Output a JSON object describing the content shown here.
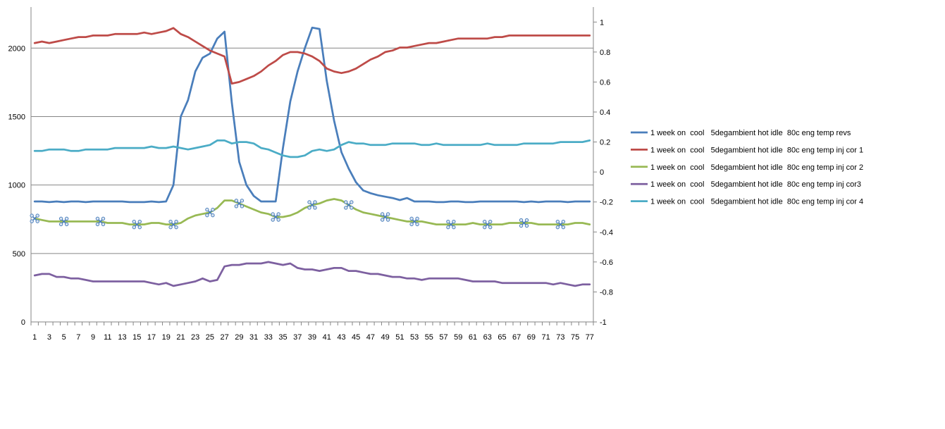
{
  "chart_data": {
    "type": "line",
    "title": "",
    "xlabel": "",
    "ylabel": "",
    "x_tick_labels": [
      "1",
      "3",
      "5",
      "7",
      "9",
      "11",
      "13",
      "15",
      "17",
      "19",
      "21",
      "23",
      "25",
      "27",
      "29",
      "31",
      "33",
      "35",
      "37",
      "39",
      "41",
      "43",
      "45",
      "47",
      "49",
      "51",
      "53",
      "55",
      "57",
      "59",
      "61",
      "63",
      "65",
      "67",
      "69",
      "71",
      "73",
      "75",
      "77"
    ],
    "y_left": {
      "lim": [
        0,
        2300
      ],
      "ticks": [
        0,
        500,
        1000,
        1500,
        2000
      ],
      "tick_labels": [
        "0",
        "500",
        "1000",
        "1500",
        "2000"
      ]
    },
    "y_right": {
      "lim": [
        -1,
        1.1
      ],
      "ticks": [
        -1,
        -0.8,
        -0.6,
        -0.4,
        -0.2,
        0,
        0.2,
        0.4,
        0.6,
        0.8,
        1
      ],
      "tick_labels": [
        "-1",
        "-0.8",
        "-0.6",
        "-0.4",
        "-0.2",
        "0",
        "0.2",
        "0.4",
        "0.6",
        "0.8",
        "1"
      ]
    },
    "grid": "horizontal",
    "legend_position": "right",
    "series": [
      {
        "name": "1 week on  cool   5degambient hot idle  80c eng temp revs",
        "color": "#4a7ebb",
        "axis": "left",
        "marker": "",
        "values": [
          880,
          880,
          875,
          880,
          875,
          880,
          880,
          875,
          880,
          880,
          880,
          880,
          880,
          875,
          875,
          875,
          880,
          875,
          880,
          1000,
          1500,
          1620,
          1830,
          1930,
          1960,
          2070,
          2120,
          1600,
          1170,
          1000,
          920,
          880,
          880,
          880,
          1270,
          1610,
          1830,
          2000,
          2150,
          2140,
          1760,
          1470,
          1240,
          1120,
          1020,
          960,
          940,
          925,
          915,
          905,
          890,
          905,
          880,
          880,
          880,
          875,
          875,
          880,
          880,
          875,
          875,
          880,
          880,
          880,
          880,
          880,
          880,
          875,
          880,
          875,
          880,
          880,
          880,
          875,
          880,
          880,
          880
        ]
      },
      {
        "name": "1 week on  cool   5degambient hot idle  80c eng temp inj cor 1",
        "color": "#be4b48",
        "axis": "right",
        "marker": "",
        "values": [
          0.86,
          0.87,
          0.86,
          0.87,
          0.88,
          0.89,
          0.9,
          0.9,
          0.91,
          0.91,
          0.91,
          0.92,
          0.92,
          0.92,
          0.92,
          0.93,
          0.92,
          0.93,
          0.94,
          0.96,
          0.92,
          0.9,
          0.87,
          0.84,
          0.81,
          0.79,
          0.77,
          0.59,
          0.6,
          0.62,
          0.64,
          0.67,
          0.71,
          0.74,
          0.78,
          0.8,
          0.8,
          0.79,
          0.77,
          0.74,
          0.69,
          0.67,
          0.66,
          0.67,
          0.69,
          0.72,
          0.75,
          0.77,
          0.8,
          0.81,
          0.83,
          0.83,
          0.84,
          0.85,
          0.86,
          0.86,
          0.87,
          0.88,
          0.89,
          0.89,
          0.89,
          0.89,
          0.89,
          0.9,
          0.9,
          0.91,
          0.91,
          0.91,
          0.91,
          0.91,
          0.91,
          0.91,
          0.91,
          0.91,
          0.91,
          0.91,
          0.91
        ]
      },
      {
        "name": "1 week on  cool   5degambient hot idle  80c eng temp inj cor 2",
        "color": "#98b954",
        "axis": "right",
        "marker": "x-circle",
        "marker_color": "#4a7ebb",
        "marker_indices": [
          0,
          4,
          9,
          14,
          19,
          24,
          28,
          33,
          38,
          43,
          48,
          52,
          57,
          62,
          67,
          72
        ],
        "values": [
          -0.31,
          -0.32,
          -0.33,
          -0.33,
          -0.33,
          -0.33,
          -0.33,
          -0.33,
          -0.33,
          -0.33,
          -0.34,
          -0.34,
          -0.34,
          -0.35,
          -0.35,
          -0.35,
          -0.34,
          -0.34,
          -0.35,
          -0.35,
          -0.34,
          -0.31,
          -0.29,
          -0.28,
          -0.27,
          -0.24,
          -0.19,
          -0.19,
          -0.21,
          -0.23,
          -0.25,
          -0.27,
          -0.28,
          -0.3,
          -0.3,
          -0.29,
          -0.27,
          -0.24,
          -0.22,
          -0.21,
          -0.19,
          -0.18,
          -0.19,
          -0.22,
          -0.25,
          -0.27,
          -0.28,
          -0.29,
          -0.3,
          -0.31,
          -0.32,
          -0.33,
          -0.33,
          -0.33,
          -0.34,
          -0.35,
          -0.35,
          -0.35,
          -0.35,
          -0.35,
          -0.34,
          -0.35,
          -0.35,
          -0.35,
          -0.35,
          -0.34,
          -0.34,
          -0.34,
          -0.34,
          -0.35,
          -0.35,
          -0.35,
          -0.35,
          -0.35,
          -0.34,
          -0.34,
          -0.35
        ]
      },
      {
        "name": "1 week on  cool   5degambient hot idle  80c eng temp inj cor3",
        "color": "#7d60a0",
        "axis": "right",
        "marker": "",
        "values": [
          -0.69,
          -0.68,
          -0.68,
          -0.7,
          -0.7,
          -0.71,
          -0.71,
          -0.72,
          -0.73,
          -0.73,
          -0.73,
          -0.73,
          -0.73,
          -0.73,
          -0.73,
          -0.73,
          -0.74,
          -0.75,
          -0.74,
          -0.76,
          -0.75,
          -0.74,
          -0.73,
          -0.71,
          -0.73,
          -0.72,
          -0.63,
          -0.62,
          -0.62,
          -0.61,
          -0.61,
          -0.61,
          -0.6,
          -0.61,
          -0.62,
          -0.61,
          -0.64,
          -0.65,
          -0.65,
          -0.66,
          -0.65,
          -0.64,
          -0.64,
          -0.66,
          -0.66,
          -0.67,
          -0.68,
          -0.68,
          -0.69,
          -0.7,
          -0.7,
          -0.71,
          -0.71,
          -0.72,
          -0.71,
          -0.71,
          -0.71,
          -0.71,
          -0.71,
          -0.72,
          -0.73,
          -0.73,
          -0.73,
          -0.73,
          -0.74,
          -0.74,
          -0.74,
          -0.74,
          -0.74,
          -0.74,
          -0.74,
          -0.75,
          -0.74,
          -0.75,
          -0.76,
          -0.75,
          -0.75
        ]
      },
      {
        "name": "1 week on  cool   5degambient hot idle  80c eng temp inj cor 4",
        "color": "#4bacc6",
        "axis": "right",
        "marker": "",
        "values": [
          0.14,
          0.14,
          0.15,
          0.15,
          0.15,
          0.14,
          0.14,
          0.15,
          0.15,
          0.15,
          0.15,
          0.16,
          0.16,
          0.16,
          0.16,
          0.16,
          0.17,
          0.16,
          0.16,
          0.17,
          0.16,
          0.15,
          0.16,
          0.17,
          0.18,
          0.21,
          0.21,
          0.19,
          0.2,
          0.2,
          0.19,
          0.16,
          0.15,
          0.13,
          0.11,
          0.1,
          0.1,
          0.11,
          0.14,
          0.15,
          0.14,
          0.15,
          0.18,
          0.2,
          0.19,
          0.19,
          0.18,
          0.18,
          0.18,
          0.19,
          0.19,
          0.19,
          0.19,
          0.18,
          0.18,
          0.19,
          0.18,
          0.18,
          0.18,
          0.18,
          0.18,
          0.18,
          0.19,
          0.18,
          0.18,
          0.18,
          0.18,
          0.19,
          0.19,
          0.19,
          0.19,
          0.19,
          0.2,
          0.2,
          0.2,
          0.2,
          0.21
        ]
      }
    ]
  }
}
